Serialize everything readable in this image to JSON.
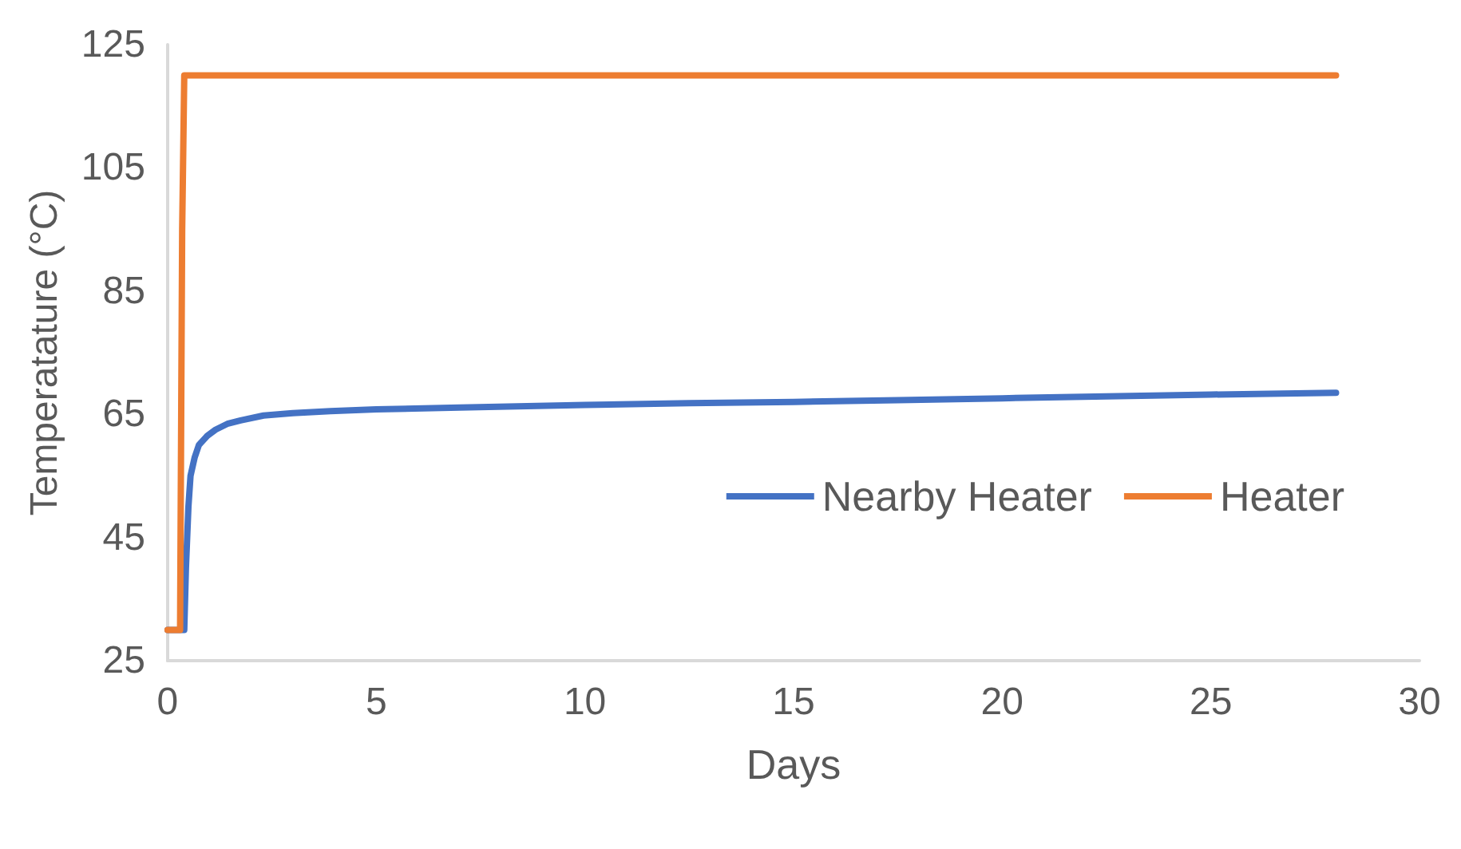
{
  "chart_data": {
    "type": "line",
    "xlabel": "Days",
    "ylabel": "Temperatature (°C)",
    "xlim": [
      0,
      30
    ],
    "xticks": [
      0,
      5,
      10,
      15,
      20,
      25,
      30
    ],
    "ylim": [
      25,
      125
    ],
    "yticks": [
      25,
      45,
      65,
      85,
      105,
      125
    ],
    "grid": false,
    "legend": "right",
    "marker": "none",
    "line_style": "solid",
    "series": [
      {
        "name": "Nearby Heater",
        "color": "#4472c4",
        "x": [
          0,
          0.4,
          0.44,
          0.5,
          0.55,
          0.65,
          0.75,
          0.95,
          1.15,
          1.45,
          1.75,
          2.3,
          3,
          3.9,
          5,
          7,
          10,
          12.5,
          15,
          17.5,
          20,
          22.5,
          25,
          28
        ],
        "values": [
          30,
          30,
          40,
          50,
          55,
          58,
          60,
          61.5,
          62.5,
          63.5,
          64,
          64.8,
          65.2,
          65.5,
          65.8,
          66.1,
          66.5,
          66.8,
          67,
          67.3,
          67.6,
          67.9,
          68.2,
          68.5
        ]
      },
      {
        "name": "Heater",
        "color": "#ed7d31",
        "x": [
          0,
          0.3,
          0.35,
          0.4,
          28
        ],
        "values": [
          30,
          30,
          95,
          120,
          120
        ]
      }
    ]
  }
}
